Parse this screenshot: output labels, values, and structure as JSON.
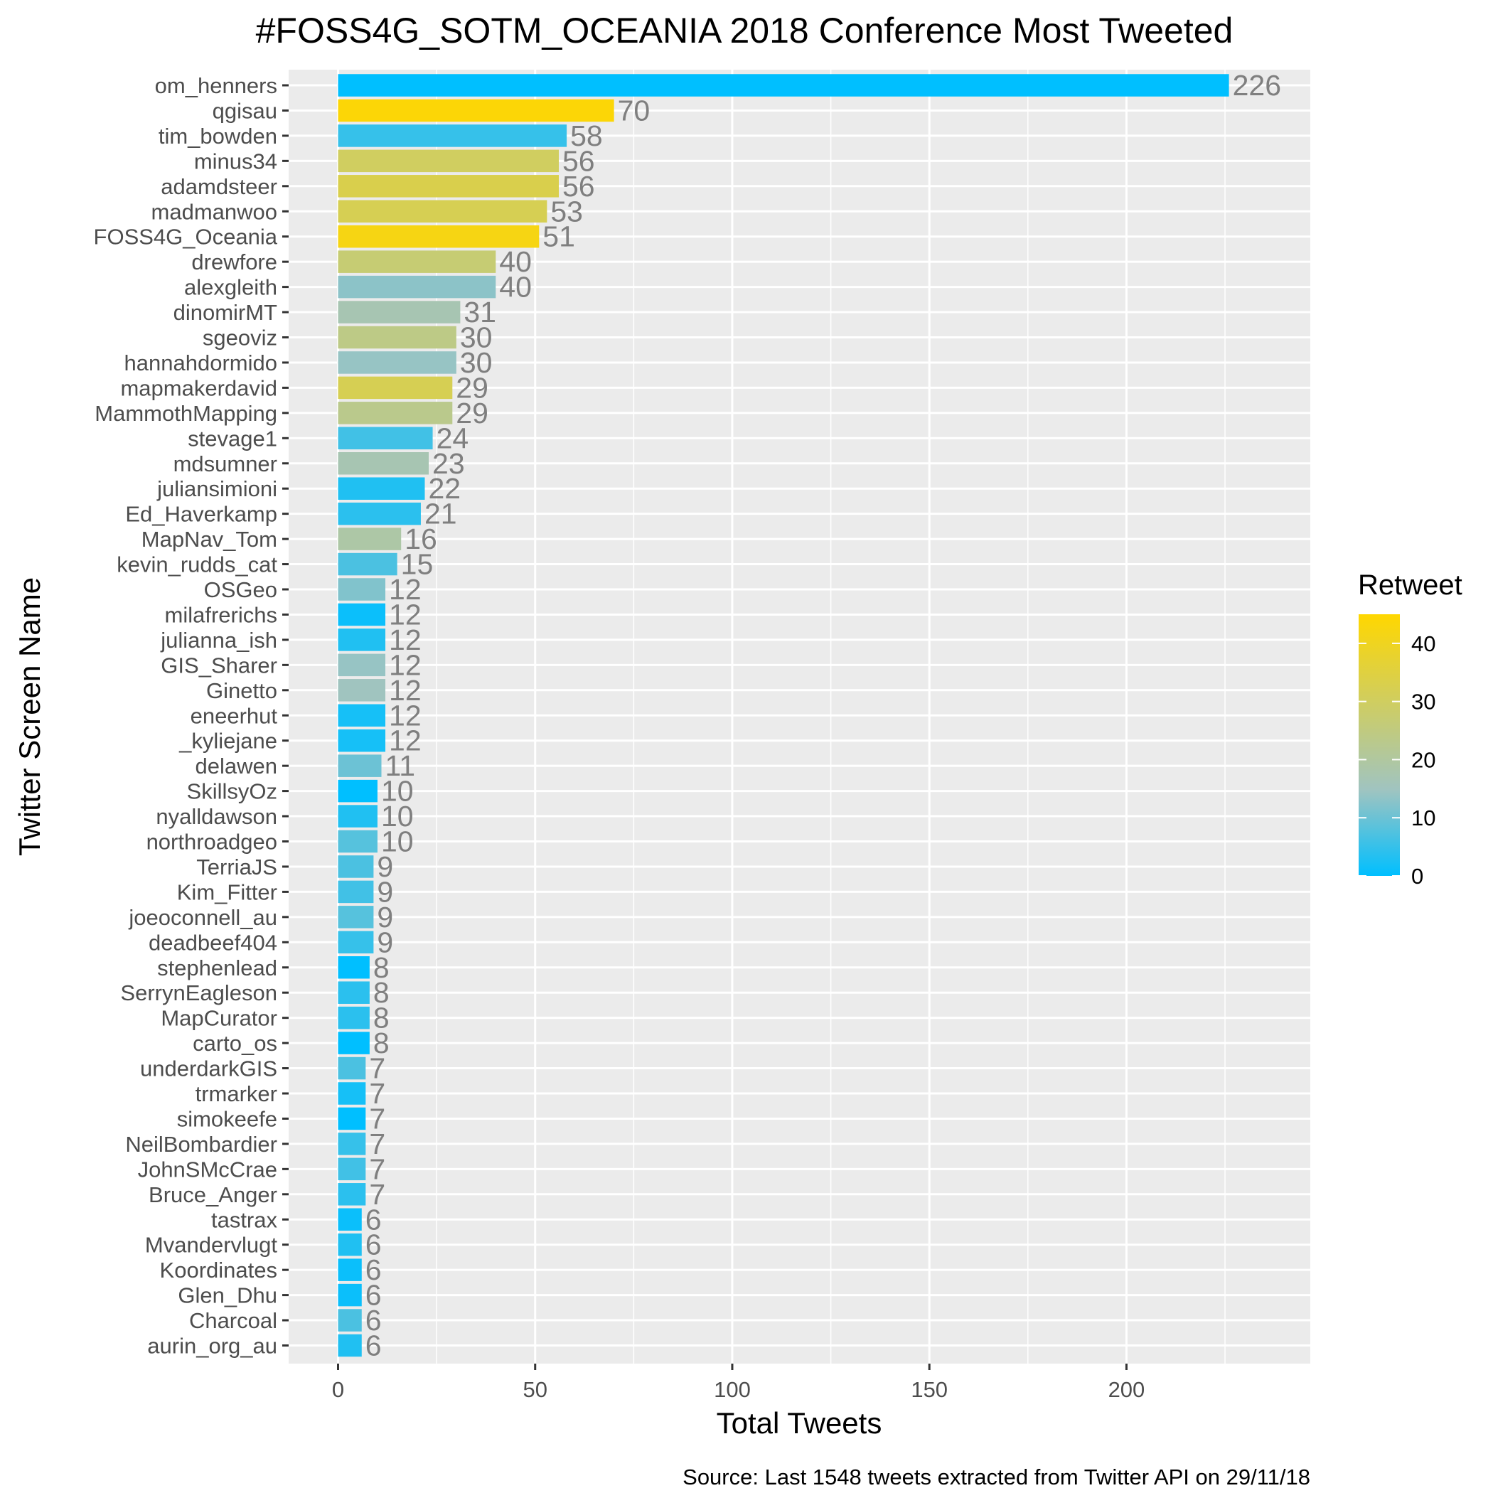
{
  "chart_data": {
    "type": "bar",
    "orientation": "horizontal",
    "title": "#FOSS4G_SOTM_OCEANIA 2018 Conference Most Tweeted",
    "xlabel": "Total Tweets",
    "ylabel": "Twitter Screen Name",
    "caption": "Source: Last 1548 tweets extracted from Twitter API on 29/11/18",
    "xlim": [
      -12,
      246
    ],
    "xticks": [
      0,
      50,
      100,
      150,
      200
    ],
    "grid": true,
    "legend": {
      "title": "Retweet",
      "position": "right",
      "type": "colorbar",
      "range": [
        0,
        45
      ],
      "ticks": [
        0,
        10,
        20,
        30,
        40
      ],
      "low_color": "#00BFFF",
      "mid_color": "#A0C4C0",
      "high_color": "#FFD700"
    },
    "bars": [
      {
        "name": "om_henners",
        "value": 226,
        "retweet": 0
      },
      {
        "name": "qgisau",
        "value": 70,
        "retweet": 44
      },
      {
        "name": "tim_bowden",
        "value": 58,
        "retweet": 5
      },
      {
        "name": "minus34",
        "value": 56,
        "retweet": 30
      },
      {
        "name": "adamdsteer",
        "value": 56,
        "retweet": 33
      },
      {
        "name": "madmanwoo",
        "value": 53,
        "retweet": 32
      },
      {
        "name": "FOSS4G_Oceania",
        "value": 51,
        "retweet": 42
      },
      {
        "name": "drewfore",
        "value": 40,
        "retweet": 27
      },
      {
        "name": "alexgleith",
        "value": 40,
        "retweet": 13
      },
      {
        "name": "dinomirMT",
        "value": 31,
        "retweet": 17
      },
      {
        "name": "sgeoviz",
        "value": 30,
        "retweet": 24
      },
      {
        "name": "hannahdormido",
        "value": 30,
        "retweet": 14
      },
      {
        "name": "mapmakerdavid",
        "value": 29,
        "retweet": 32
      },
      {
        "name": "MammothMapping",
        "value": 29,
        "retweet": 23
      },
      {
        "name": "stevage1",
        "value": 24,
        "retweet": 6
      },
      {
        "name": "mdsumner",
        "value": 23,
        "retweet": 17
      },
      {
        "name": "juliansimioni",
        "value": 22,
        "retweet": 3
      },
      {
        "name": "Ed_Haverkamp",
        "value": 21,
        "retweet": 4
      },
      {
        "name": "MapNav_Tom",
        "value": 16,
        "retweet": 19
      },
      {
        "name": "kevin_rudds_cat",
        "value": 15,
        "retweet": 7
      },
      {
        "name": "OSGeo",
        "value": 12,
        "retweet": 12
      },
      {
        "name": "milafrerichs",
        "value": 12,
        "retweet": 1
      },
      {
        "name": "julianna_ish",
        "value": 12,
        "retweet": 3
      },
      {
        "name": "GIS_Sharer",
        "value": 12,
        "retweet": 14
      },
      {
        "name": "Ginetto",
        "value": 12,
        "retweet": 15
      },
      {
        "name": "eneerhut",
        "value": 12,
        "retweet": 2
      },
      {
        "name": "_kyliejane",
        "value": 12,
        "retweet": 2
      },
      {
        "name": "delawen",
        "value": 11,
        "retweet": 10
      },
      {
        "name": "SkillsyOz",
        "value": 10,
        "retweet": 0
      },
      {
        "name": "nyalldawson",
        "value": 10,
        "retweet": 3
      },
      {
        "name": "northroadgeo",
        "value": 10,
        "retweet": 8
      },
      {
        "name": "TerriaJS",
        "value": 9,
        "retweet": 7
      },
      {
        "name": "Kim_Fitter",
        "value": 9,
        "retweet": 6
      },
      {
        "name": "joeoconnell_au",
        "value": 9,
        "retweet": 8
      },
      {
        "name": "deadbeef404",
        "value": 9,
        "retweet": 5
      },
      {
        "name": "stephenlead",
        "value": 8,
        "retweet": 0
      },
      {
        "name": "SerrynEagleson",
        "value": 8,
        "retweet": 4
      },
      {
        "name": "MapCurator",
        "value": 8,
        "retweet": 4
      },
      {
        "name": "carto_os",
        "value": 8,
        "retweet": 0
      },
      {
        "name": "underdarkGIS",
        "value": 7,
        "retweet": 7
      },
      {
        "name": "trmarker",
        "value": 7,
        "retweet": 2
      },
      {
        "name": "simokeefe",
        "value": 7,
        "retweet": 0
      },
      {
        "name": "NeilBombardier",
        "value": 7,
        "retweet": 5
      },
      {
        "name": "JohnSMcCrae",
        "value": 7,
        "retweet": 6
      },
      {
        "name": "Bruce_Anger",
        "value": 7,
        "retweet": 4
      },
      {
        "name": "tastrax",
        "value": 6,
        "retweet": 1
      },
      {
        "name": "Mvandervlugt",
        "value": 6,
        "retweet": 3
      },
      {
        "name": "Koordinates",
        "value": 6,
        "retweet": 1
      },
      {
        "name": "Glen_Dhu",
        "value": 6,
        "retweet": 1
      },
      {
        "name": "Charcoal",
        "value": 6,
        "retweet": 7
      },
      {
        "name": "aurin_org_au",
        "value": 6,
        "retweet": 3
      }
    ]
  },
  "colors": {
    "panel_background": "#EBEBEB",
    "grid_line": "#FFFFFF",
    "data_label": "#7F7F7F",
    "axis_text": "#4D4D4D",
    "tick_mark": "#333333"
  }
}
